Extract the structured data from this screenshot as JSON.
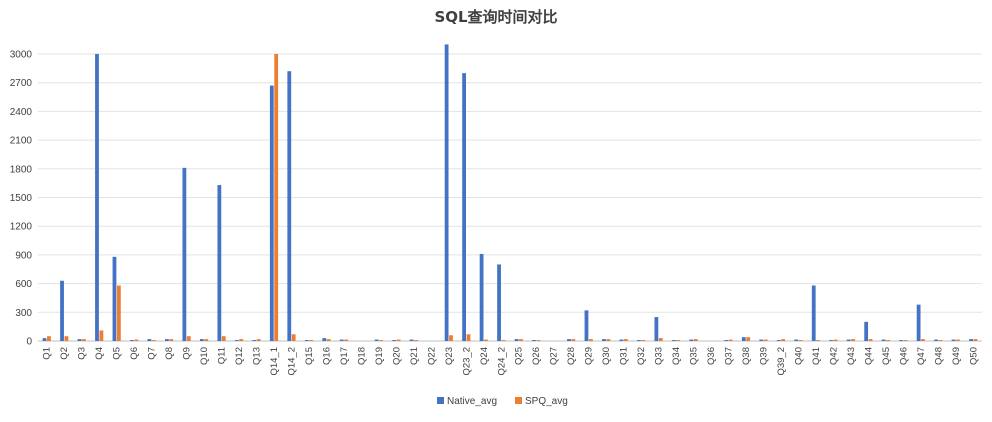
{
  "chart_data": {
    "type": "bar",
    "title": "SQL查询时间对比",
    "xlabel": "",
    "ylabel": "",
    "ylim": [
      0,
      3000
    ],
    "yticks": [
      0,
      300,
      600,
      900,
      1200,
      1500,
      1800,
      2100,
      2400,
      2700,
      3000
    ],
    "grid": true,
    "legend_position": "bottom",
    "categories": [
      "Q1",
      "Q2",
      "Q3",
      "Q4",
      "Q5",
      "Q6",
      "Q7",
      "Q8",
      "Q9",
      "Q10",
      "Q11",
      "Q12",
      "Q13",
      "Q14_1",
      "Q14_2",
      "Q15",
      "Q16",
      "Q17",
      "Q18",
      "Q19",
      "Q20",
      "Q21",
      "Q22",
      "Q23",
      "Q23_2",
      "Q24",
      "Q24_2",
      "Q25",
      "Q26",
      "Q27",
      "Q28",
      "Q29",
      "Q30",
      "Q31",
      "Q32",
      "Q33",
      "Q34",
      "Q35",
      "Q36",
      "Q37",
      "Q38",
      "Q39",
      "Q39_2",
      "Q40",
      "Q41",
      "Q42",
      "Q43",
      "Q44",
      "Q45",
      "Q46",
      "Q47",
      "Q48",
      "Q49",
      "Q50"
    ],
    "series": [
      {
        "name": "Native_avg",
        "color": "#4472C4",
        "values": [
          30,
          630,
          20,
          3000,
          880,
          10,
          20,
          20,
          1810,
          20,
          1630,
          10,
          10,
          2670,
          2820,
          10,
          30,
          15,
          0,
          15,
          10,
          15,
          0,
          3100,
          2800,
          910,
          800,
          20,
          10,
          0,
          20,
          320,
          20,
          15,
          10,
          250,
          10,
          15,
          0,
          10,
          40,
          15,
          10,
          15,
          580,
          10,
          15,
          200,
          15,
          10,
          380,
          15,
          15,
          20
        ]
      },
      {
        "name": "SPQ_avg",
        "color": "#ED7D31",
        "values": [
          50,
          50,
          20,
          110,
          580,
          15,
          10,
          20,
          50,
          20,
          50,
          20,
          20,
          3000,
          70,
          10,
          20,
          15,
          0,
          10,
          15,
          10,
          0,
          60,
          70,
          15,
          10,
          20,
          10,
          0,
          20,
          20,
          20,
          20,
          10,
          30,
          10,
          20,
          0,
          15,
          40,
          15,
          20,
          10,
          10,
          15,
          20,
          20,
          10,
          10,
          20,
          10,
          15,
          20
        ]
      }
    ]
  }
}
